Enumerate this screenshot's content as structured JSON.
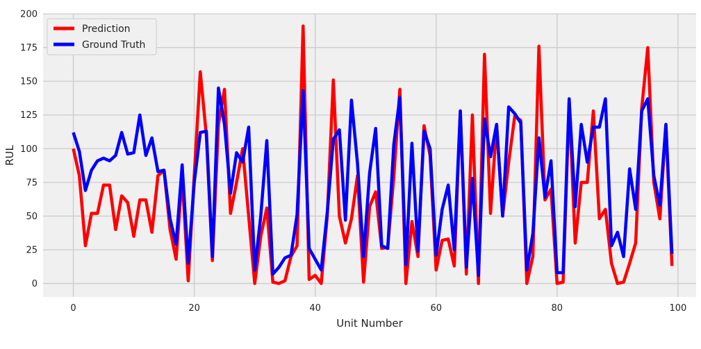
{
  "chart_data": {
    "type": "line",
    "title": "",
    "xlabel": "Unit Number",
    "ylabel": "RUL",
    "xlim": [
      -5,
      103
    ],
    "ylim": [
      -10,
      200
    ],
    "xticks": [
      0,
      20,
      40,
      60,
      80,
      100
    ],
    "yticks": [
      0,
      25,
      50,
      75,
      100,
      125,
      150,
      175,
      200
    ],
    "grid": true,
    "legend": "top-left",
    "x": [
      0,
      1,
      2,
      3,
      4,
      5,
      6,
      7,
      8,
      9,
      10,
      11,
      12,
      13,
      14,
      15,
      16,
      17,
      18,
      19,
      20,
      21,
      22,
      23,
      24,
      25,
      26,
      27,
      28,
      29,
      30,
      31,
      32,
      33,
      34,
      35,
      36,
      37,
      38,
      39,
      40,
      41,
      42,
      43,
      44,
      45,
      46,
      47,
      48,
      49,
      50,
      51,
      52,
      53,
      54,
      55,
      56,
      57,
      58,
      59,
      60,
      61,
      62,
      63,
      64,
      65,
      66,
      67,
      68,
      69,
      70,
      71,
      72,
      73,
      74,
      75,
      76,
      77,
      78,
      79,
      80,
      81,
      82,
      83,
      84,
      85,
      86,
      87,
      88,
      89,
      90,
      91,
      92,
      93,
      94,
      95,
      96,
      97,
      98,
      99
    ],
    "series": [
      {
        "name": "Prediction",
        "color": "#ff0000",
        "values": [
          100,
          80,
          28,
          52,
          52,
          73,
          73,
          40,
          65,
          60,
          35,
          62,
          62,
          38,
          80,
          84,
          40,
          18,
          80,
          2,
          80,
          157,
          110,
          17,
          118,
          144,
          52,
          75,
          100,
          50,
          0,
          35,
          56,
          1,
          0,
          2,
          20,
          28,
          191,
          3,
          6,
          0,
          50,
          151,
          50,
          30,
          48,
          80,
          1,
          57,
          68,
          26,
          27,
          79,
          144,
          0,
          46,
          20,
          117,
          95,
          10,
          32,
          33,
          13,
          128,
          7,
          125,
          0,
          170,
          52,
          118,
          50,
          90,
          124,
          121,
          0,
          20,
          176,
          62,
          70,
          0,
          1,
          135,
          30,
          75,
          75,
          128,
          48,
          55,
          15,
          0,
          1,
          15,
          30,
          130,
          175,
          75,
          48,
          118,
          13
        ]
      },
      {
        "name": "Ground Truth",
        "color": "#0000ff",
        "values": [
          112,
          98,
          69,
          84,
          91,
          93,
          91,
          95,
          112,
          96,
          97,
          125,
          95,
          108,
          83,
          84,
          48,
          29,
          88,
          15,
          75,
          112,
          113,
          20,
          145,
          118,
          67,
          97,
          90,
          116,
          10,
          50,
          106,
          7,
          12,
          19,
          21,
          51,
          143,
          26,
          18,
          10,
          53,
          107,
          114,
          47,
          136,
          89,
          20,
          82,
          115,
          28,
          26,
          103,
          138,
          14,
          104,
          24,
          113,
          100,
          21,
          55,
          73,
          25,
          128,
          12,
          78,
          6,
          122,
          94,
          118,
          50,
          131,
          126,
          119,
          10,
          37,
          108,
          64,
          91,
          8,
          8,
          137,
          57,
          118,
          90,
          116,
          116,
          137,
          28,
          38,
          20,
          85,
          55,
          128,
          137,
          80,
          58,
          118,
          22
        ]
      }
    ]
  }
}
